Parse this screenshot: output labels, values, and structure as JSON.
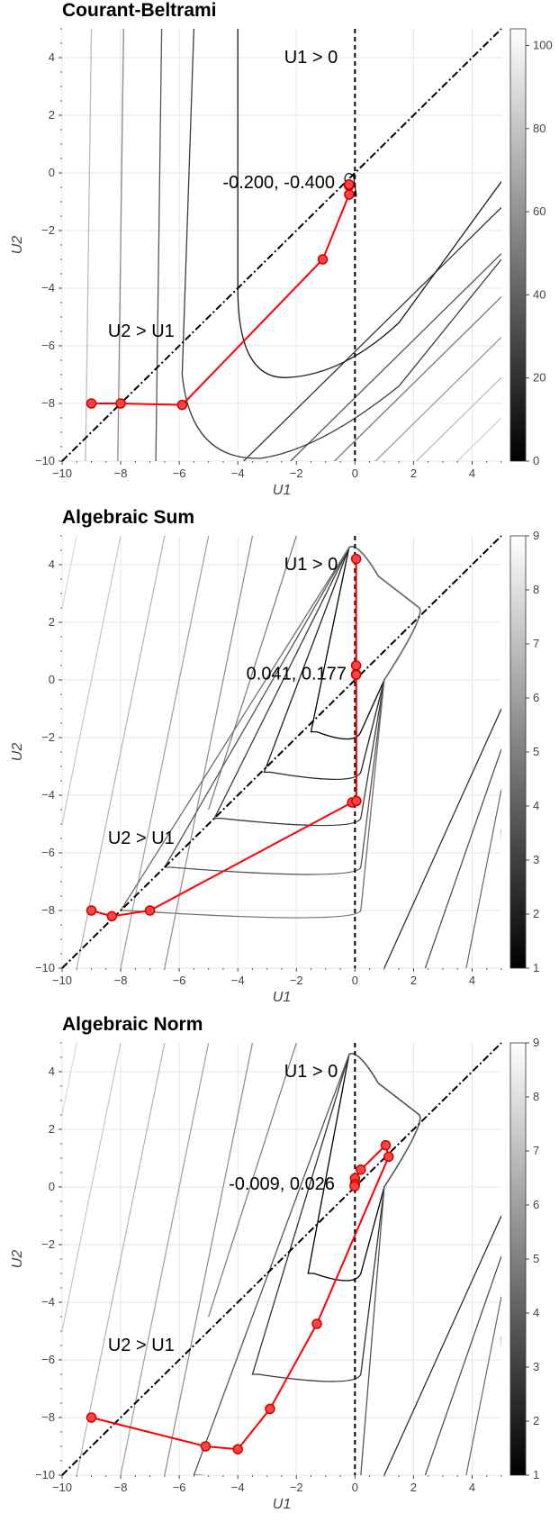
{
  "chart_data": [
    {
      "type": "line",
      "title": "Courant-Beltrami",
      "xlabel": "U1",
      "ylabel": "U2",
      "xlim": [
        -10,
        5
      ],
      "ylim": [
        -10,
        5
      ],
      "xticks": [
        "−10",
        "−8",
        "−6",
        "−4",
        "−2",
        "0",
        "2",
        "4"
      ],
      "yticks": [
        "−10",
        "−8",
        "−6",
        "−4",
        "−2",
        "0",
        "2",
        "4"
      ],
      "grid": true,
      "background_contours": "Courant-Beltrami penalty (U1 - U2 + penalty grid)",
      "colorbar": {
        "min": 0,
        "max": 104,
        "ticks": [
          "0",
          "20",
          "40",
          "60",
          "80",
          "100"
        ]
      },
      "annotations": [
        {
          "text": "U1 > 0",
          "x": -1.5,
          "y": 4.0
        },
        {
          "text": "U2 > U1",
          "x": -7.3,
          "y": -5.5
        },
        {
          "text": "-0.200, -0.400",
          "x": -2.6,
          "y": -0.35
        }
      ],
      "series": [
        {
          "x": [
            -9.0,
            -8.0,
            -5.9,
            -1.1,
            -0.2,
            -0.2,
            -0.2
          ],
          "y": [
            -8.0,
            -8.0,
            -8.05,
            -3.0,
            -0.75,
            -0.45,
            -0.4
          ]
        }
      ],
      "reference_lines": [
        "x = 0 (dashed)",
        "y = x (dash-dot)"
      ]
    },
    {
      "type": "line",
      "title": "Algebraic Sum",
      "xlabel": "U1",
      "ylabel": "U2",
      "xlim": [
        -10,
        5
      ],
      "ylim": [
        -10,
        5
      ],
      "xticks": [
        "−10",
        "−8",
        "−6",
        "−4",
        "−2",
        "0",
        "2",
        "4"
      ],
      "yticks": [
        "−10",
        "−8",
        "−6",
        "−4",
        "−2",
        "0",
        "2",
        "4"
      ],
      "grid": true,
      "colorbar": {
        "min": 1,
        "max": 9,
        "ticks": [
          "1",
          "2",
          "3",
          "4",
          "5",
          "6",
          "7",
          "8",
          "9"
        ]
      },
      "annotations": [
        {
          "text": "U1 > 0",
          "x": -1.5,
          "y": 4.0
        },
        {
          "text": "U2 > U1",
          "x": -7.3,
          "y": -5.5
        },
        {
          "text": "0.041, 0.177",
          "x": -2.0,
          "y": 0.2
        }
      ],
      "series": [
        {
          "x": [
            -9.0,
            -8.3,
            -7.0,
            -0.1,
            0.05,
            0.04,
            0.04,
            0.04,
            0.04
          ],
          "y": [
            -8.0,
            -8.2,
            -8.0,
            -4.25,
            -4.2,
            4.2,
            0.5,
            0.2,
            0.177
          ]
        }
      ],
      "reference_lines": [
        "x = 0 (dashed)",
        "y = x (dash-dot)"
      ]
    },
    {
      "type": "line",
      "title": "Algebraic Norm",
      "xlabel": "U1",
      "ylabel": "U2",
      "xlim": [
        -10,
        5
      ],
      "ylim": [
        -10,
        5
      ],
      "xticks": [
        "−10",
        "−8",
        "−6",
        "−4",
        "−2",
        "0",
        "2",
        "4"
      ],
      "yticks": [
        "−10",
        "−8",
        "−6",
        "−4",
        "−2",
        "0",
        "2",
        "4"
      ],
      "grid": true,
      "colorbar": {
        "min": 1,
        "max": 9,
        "ticks": [
          "1",
          "2",
          "3",
          "4",
          "5",
          "6",
          "7",
          "8",
          "9"
        ]
      },
      "annotations": [
        {
          "text": "U1 > 0",
          "x": -1.5,
          "y": 4.0
        },
        {
          "text": "U2 > U1",
          "x": -7.3,
          "y": -5.5
        },
        {
          "text": "-0.009, 0.026",
          "x": -2.5,
          "y": 0.1
        }
      ],
      "series": [
        {
          "x": [
            -9.0,
            -5.1,
            -4.0,
            -2.9,
            -1.3,
            1.15,
            1.05,
            0.2,
            0.0,
            0.0,
            -0.009
          ],
          "y": [
            -8.0,
            -9.0,
            -9.1,
            -7.7,
            -4.75,
            1.05,
            1.45,
            0.6,
            0.3,
            0.1,
            0.026
          ]
        }
      ],
      "reference_lines": [
        "x = 0 (dashed)",
        "y = x (dash-dot)"
      ]
    }
  ]
}
